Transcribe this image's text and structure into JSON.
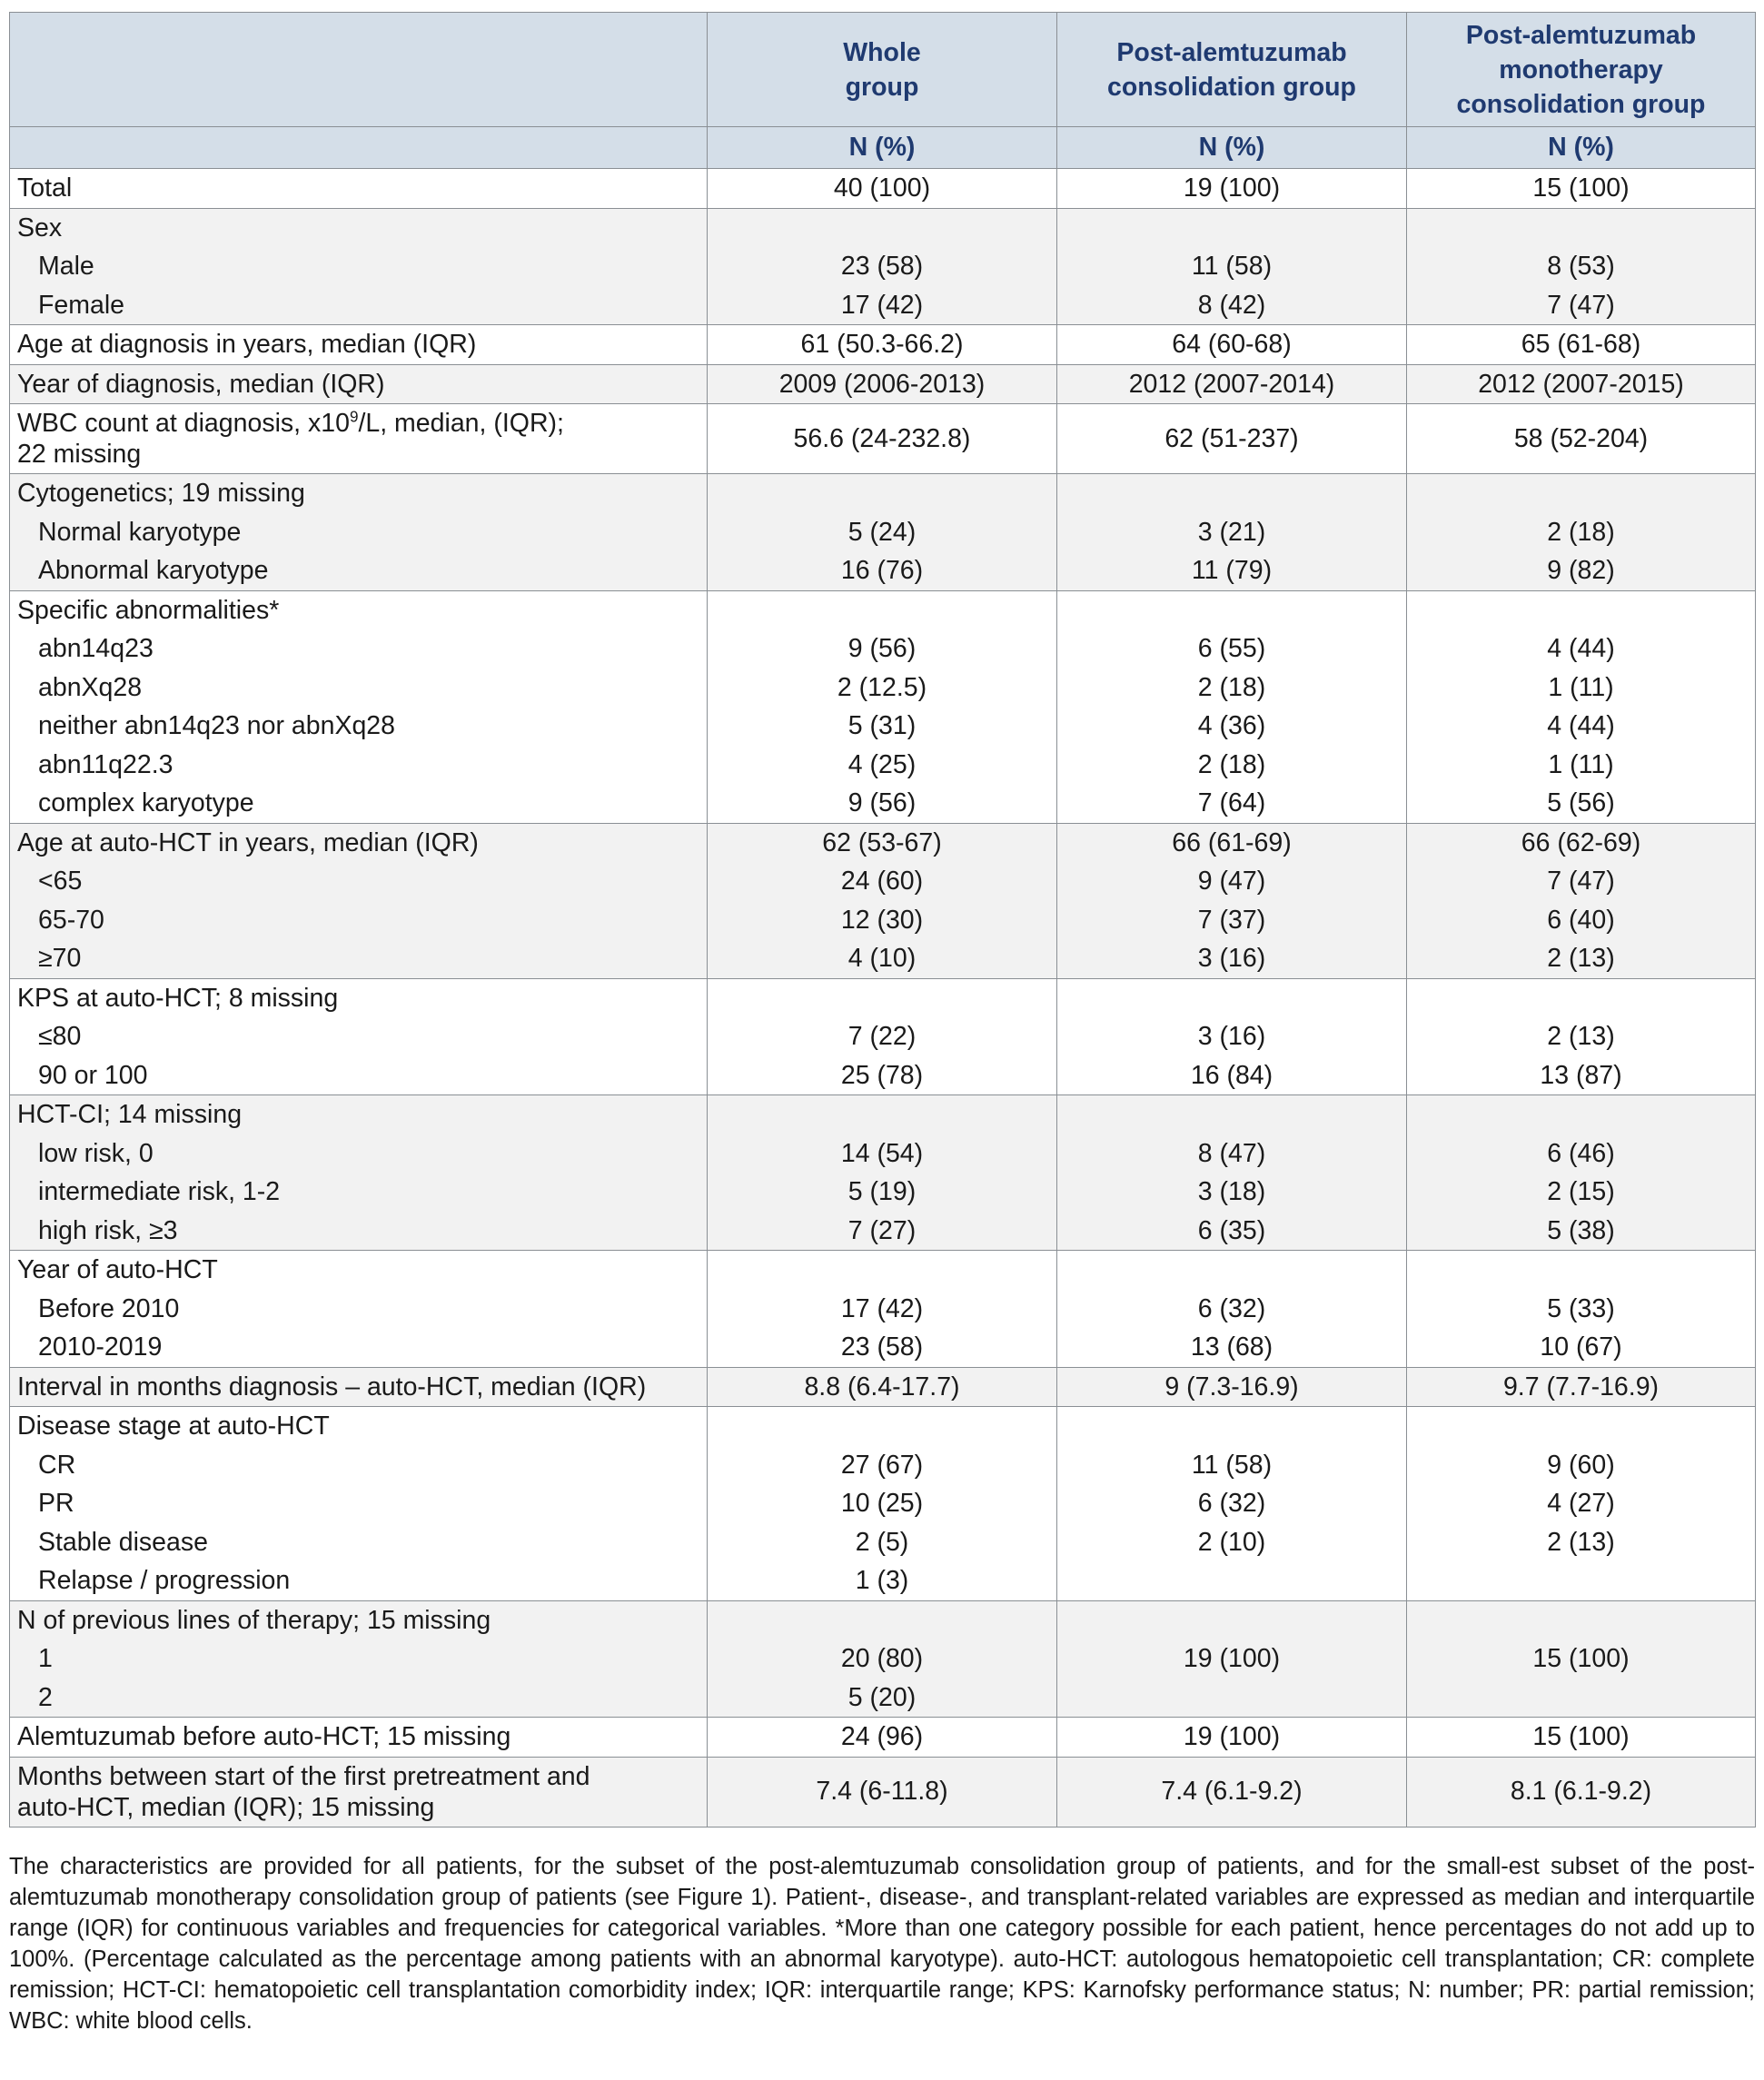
{
  "table": {
    "header": {
      "group_titles": [
        "",
        "Whole\ngroup",
        "Post-alemtuzumab\nconsolidation group",
        "Post-alemtuzumab\nmonotherapy\nconsolidation group"
      ],
      "subheaders": [
        "",
        "N (%)",
        "N (%)",
        "N (%)"
      ]
    },
    "rows": [
      {
        "label": "Total",
        "values": [
          "40 (100)",
          "19 (100)",
          "15 (100)"
        ],
        "shade": false
      },
      {
        "label": "Sex",
        "shade": true,
        "items": [
          {
            "label": "Male",
            "values": [
              "23 (58)",
              "11 (58)",
              "8 (53)"
            ]
          },
          {
            "label": "Female",
            "values": [
              "17 (42)",
              "8 (42)",
              "7 (47)"
            ]
          }
        ]
      },
      {
        "label": "Age at diagnosis in years, median (IQR)",
        "values": [
          "61 (50.3-66.2)",
          "64 (60-68)",
          "65 (61-68)"
        ],
        "shade": false
      },
      {
        "label": "Year of diagnosis, median (IQR)",
        "values": [
          "2009 (2006-2013)",
          "2012 (2007-2014)",
          "2012 (2007-2015)"
        ],
        "shade": true
      },
      {
        "label_pre": "WBC count at diagnosis, x10",
        "label_sup": "9",
        "label_post": "/L, median, (IQR);",
        "label_line2": "22 missing",
        "values": [
          "56.6 (24-232.8)",
          "62 (51-237)",
          "58 (52-204)"
        ],
        "shade": false
      },
      {
        "label": "Cytogenetics; 19 missing",
        "shade": true,
        "items": [
          {
            "label": "Normal karyotype",
            "values": [
              "5 (24)",
              "3 (21)",
              "2 (18)"
            ]
          },
          {
            "label": "Abnormal karyotype",
            "values": [
              "16 (76)",
              "11 (79)",
              "9 (82)"
            ]
          }
        ]
      },
      {
        "label": "Specific abnormalities*",
        "shade": false,
        "items": [
          {
            "label": "abn14q23",
            "values": [
              "9 (56)",
              "6 (55)",
              "4 (44)"
            ]
          },
          {
            "label": "abnXq28",
            "values": [
              "2 (12.5)",
              "2 (18)",
              "1 (11)"
            ]
          },
          {
            "label": "neither abn14q23 nor abnXq28",
            "values": [
              "5 (31)",
              "4 (36)",
              "4 (44)"
            ]
          },
          {
            "label": "abn11q22.3",
            "values": [
              "4 (25)",
              "2 (18)",
              "1 (11)"
            ]
          },
          {
            "label": "complex karyotype",
            "values": [
              "9 (56)",
              "7 (64)",
              "5 (56)"
            ]
          }
        ]
      },
      {
        "label": "Age at auto-HCT in years, median (IQR)",
        "head_values": [
          "62 (53-67)",
          "66 (61-69)",
          "66 (62-69)"
        ],
        "shade": true,
        "items": [
          {
            "label": "<65",
            "values": [
              "24 (60)",
              "9 (47)",
              "7 (47)"
            ]
          },
          {
            "label": "65-70",
            "values": [
              "12 (30)",
              "7 (37)",
              "6 (40)"
            ]
          },
          {
            "label": "≥70",
            "values": [
              "4 (10)",
              "3 (16)",
              "2 (13)"
            ]
          }
        ]
      },
      {
        "label": "KPS at auto-HCT; 8 missing",
        "shade": false,
        "items": [
          {
            "label": "≤80",
            "values": [
              "7 (22)",
              "3 (16)",
              "2 (13)"
            ]
          },
          {
            "label": "90 or 100",
            "values": [
              "25 (78)",
              "16 (84)",
              "13 (87)"
            ]
          }
        ]
      },
      {
        "label": "HCT-CI; 14 missing",
        "shade": true,
        "items": [
          {
            "label": "low risk, 0",
            "values": [
              "14 (54)",
              "8 (47)",
              "6 (46)"
            ]
          },
          {
            "label": "intermediate risk, 1-2",
            "values": [
              "5 (19)",
              "3 (18)",
              "2 (15)"
            ]
          },
          {
            "label": "high risk, ≥3",
            "values": [
              "7 (27)",
              "6 (35)",
              "5 (38)"
            ]
          }
        ]
      },
      {
        "label": "Year of auto-HCT",
        "shade": false,
        "items": [
          {
            "label": "Before 2010",
            "values": [
              "17 (42)",
              "6 (32)",
              "5 (33)"
            ]
          },
          {
            "label": "2010-2019",
            "values": [
              "23 (58)",
              "13 (68)",
              "10 (67)"
            ]
          }
        ]
      },
      {
        "label": "Interval in months diagnosis – auto-HCT, median (IQR)",
        "values": [
          "8.8 (6.4-17.7)",
          "9 (7.3-16.9)",
          "9.7 (7.7-16.9)"
        ],
        "shade": true
      },
      {
        "label": "Disease stage at auto-HCT",
        "shade": false,
        "items": [
          {
            "label": "CR",
            "values": [
              "27 (67)",
              "11 (58)",
              "9 (60)"
            ]
          },
          {
            "label": "PR",
            "values": [
              "10 (25)",
              "6 (32)",
              "4 (27)"
            ]
          },
          {
            "label": "Stable disease",
            "values": [
              "2 (5)",
              "2 (10)",
              "2 (13)"
            ]
          },
          {
            "label": "Relapse / progression",
            "values": [
              "1 (3)",
              "",
              ""
            ]
          }
        ]
      },
      {
        "label": "N of previous lines of therapy; 15 missing",
        "shade": true,
        "items": [
          {
            "label": "1",
            "values": [
              "20 (80)",
              "19 (100)",
              "15 (100)"
            ]
          },
          {
            "label": "2",
            "values": [
              "5 (20)",
              "",
              ""
            ]
          }
        ],
        "merge_cols": [
          "19 (100)",
          "15 (100)"
        ]
      },
      {
        "label": "Alemtuzumab before auto-HCT; 15 missing",
        "values": [
          "24 (96)",
          "19 (100)",
          "15 (100)"
        ],
        "shade": false
      },
      {
        "label_line1": "Months between start of the first pretreatment and",
        "label_line2": "auto-HCT, median (IQR); 15 missing",
        "values": [
          "7.4 (6-11.8)",
          "7.4 (6.1-9.2)",
          "8.1 (6.1-9.2)"
        ],
        "shade": true
      }
    ]
  },
  "caption": "The characteristics are provided for all patients, for the subset of the post-alemtuzumab consolidation group of patients, and for the small-est subset of the post-alemtuzumab monotherapy consolidation group of patients (see Figure 1). Patient-, disease-, and transplant-related variables are expressed as median and interquartile range (IQR) for continuous variables and frequencies for categorical variables. *More than one category possible for each patient, hence percentages do not add up to 100%. (Percentage calculated as the percentage among patients with an abnormal karyotype). auto-HCT: autologous hematopoietic cell transplantation; CR: complete remission; HCT-CI: hematopoietic cell transplantation comorbidity index; IQR: interquartile range; KPS: Karnofsky performance status; N: number; PR: partial remission; WBC: white blood cells."
}
